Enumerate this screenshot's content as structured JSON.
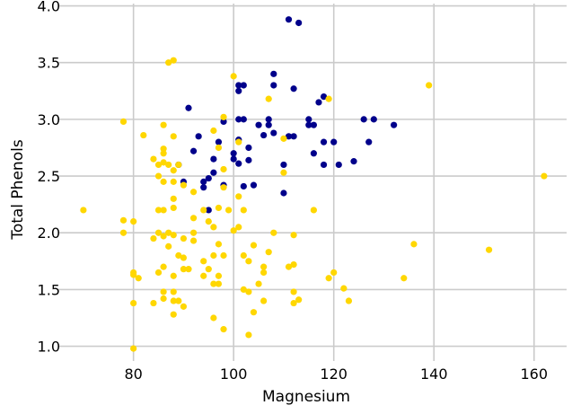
{
  "chart_data": {
    "type": "scatter",
    "xlabel": "Magnesium",
    "ylabel": "Total Phenols",
    "xlim": [
      65,
      166.5
    ],
    "ylim": [
      0.87,
      4.02
    ],
    "x_ticks": [
      80,
      100,
      120,
      140,
      160
    ],
    "y_ticks": [
      1.0,
      1.5,
      2.0,
      2.5,
      3.0,
      3.5,
      4.0
    ],
    "x_tick_labels": [
      "80",
      "100",
      "120",
      "140",
      "160"
    ],
    "y_tick_labels": [
      "1.0",
      "1.5",
      "2.0",
      "2.5",
      "3.0",
      "3.5",
      "4.0"
    ],
    "grid": true,
    "legend": false,
    "background": "#ffffff",
    "grid_color": "#cbcbcb",
    "series": [
      {
        "color": "#00008b",
        "points": [
          [
            111,
            3.88
          ],
          [
            113,
            3.85
          ],
          [
            108,
            3.4
          ],
          [
            101,
            3.3
          ],
          [
            102,
            3.3
          ],
          [
            101,
            3.25
          ],
          [
            108,
            3.3
          ],
          [
            112,
            3.27
          ],
          [
            118,
            3.2
          ],
          [
            117,
            3.15
          ],
          [
            91,
            3.1
          ],
          [
            101,
            3.0
          ],
          [
            102,
            3.0
          ],
          [
            107,
            3.0
          ],
          [
            115,
            3.0
          ],
          [
            126,
            3.0
          ],
          [
            128,
            3.0
          ],
          [
            105,
            2.95
          ],
          [
            107,
            2.95
          ],
          [
            115,
            2.95
          ],
          [
            116,
            2.95
          ],
          [
            132,
            2.95
          ],
          [
            108,
            2.88
          ],
          [
            106,
            2.86
          ],
          [
            111,
            2.85
          ],
          [
            112,
            2.85
          ],
          [
            93,
            2.85
          ],
          [
            98,
            2.98
          ],
          [
            101,
            2.82
          ],
          [
            118,
            2.8
          ],
          [
            120,
            2.8
          ],
          [
            127,
            2.8
          ],
          [
            97,
            2.8
          ],
          [
            100,
            2.7
          ],
          [
            92,
            2.72
          ],
          [
            103,
            2.75
          ],
          [
            116,
            2.7
          ],
          [
            100,
            2.65
          ],
          [
            96,
            2.65
          ],
          [
            103,
            2.64
          ],
          [
            124,
            2.63
          ],
          [
            110,
            2.6
          ],
          [
            118,
            2.6
          ],
          [
            121,
            2.6
          ],
          [
            89,
            2.6
          ],
          [
            101,
            2.61
          ],
          [
            96,
            2.53
          ],
          [
            95,
            2.48
          ],
          [
            94,
            2.45
          ],
          [
            90,
            2.45
          ],
          [
            98,
            2.42
          ],
          [
            102,
            2.41
          ],
          [
            104,
            2.42
          ],
          [
            94,
            2.4
          ],
          [
            110,
            2.35
          ],
          [
            95,
            2.2
          ]
        ]
      },
      {
        "color": "#ffd700",
        "points": [
          [
            88,
            3.52
          ],
          [
            87,
            3.5
          ],
          [
            100,
            3.38
          ],
          [
            139,
            3.3
          ],
          [
            119,
            3.18
          ],
          [
            107,
            3.18
          ],
          [
            98,
            3.02
          ],
          [
            78,
            2.98
          ],
          [
            86,
            2.95
          ],
          [
            96,
            2.9
          ],
          [
            82,
            2.86
          ],
          [
            88,
            2.85
          ],
          [
            110,
            2.83
          ],
          [
            101,
            2.8
          ],
          [
            97,
            2.75
          ],
          [
            86,
            2.74
          ],
          [
            86,
            2.7
          ],
          [
            84,
            2.65
          ],
          [
            85,
            2.6
          ],
          [
            86,
            2.62
          ],
          [
            87,
            2.6
          ],
          [
            88,
            2.55
          ],
          [
            89,
            2.6
          ],
          [
            98,
            2.56
          ],
          [
            110,
            2.53
          ],
          [
            85,
            2.5
          ],
          [
            86,
            2.45
          ],
          [
            88,
            2.45
          ],
          [
            90,
            2.42
          ],
          [
            98,
            2.4
          ],
          [
            92,
            2.36
          ],
          [
            101,
            2.32
          ],
          [
            88,
            2.3
          ],
          [
            162,
            2.5
          ],
          [
            70,
            2.2
          ],
          [
            85,
            2.2
          ],
          [
            86,
            2.2
          ],
          [
            88,
            2.22
          ],
          [
            94,
            2.2
          ],
          [
            99,
            2.2
          ],
          [
            102,
            2.2
          ],
          [
            116,
            2.2
          ],
          [
            95,
            2.1
          ],
          [
            97,
            2.22
          ],
          [
            78,
            2.11
          ],
          [
            80,
            2.1
          ],
          [
            92,
            2.13
          ],
          [
            101,
            2.05
          ],
          [
            100,
            2.02
          ],
          [
            96,
            2.05
          ],
          [
            78,
            2.0
          ],
          [
            85,
            2.0
          ],
          [
            86,
            1.97
          ],
          [
            87,
            2.0
          ],
          [
            88,
            1.98
          ],
          [
            92,
            2.0
          ],
          [
            84,
            1.95
          ],
          [
            90,
            1.95
          ],
          [
            92,
            1.93
          ],
          [
            97,
            1.9
          ],
          [
            104,
            1.89
          ],
          [
            108,
            2.0
          ],
          [
            112,
            1.98
          ],
          [
            136,
            1.9
          ],
          [
            87,
            1.88
          ],
          [
            89,
            1.8
          ],
          [
            90,
            1.78
          ],
          [
            96,
            1.8
          ],
          [
            102,
            1.8
          ],
          [
            103,
            1.75
          ],
          [
            107,
            1.83
          ],
          [
            151,
            1.85
          ],
          [
            98,
            1.8
          ],
          [
            94,
            1.75
          ],
          [
            86,
            1.7
          ],
          [
            90,
            1.68
          ],
          [
            91,
            1.68
          ],
          [
            95,
            1.68
          ],
          [
            97,
            1.62
          ],
          [
            106,
            1.7
          ],
          [
            106,
            1.65
          ],
          [
            111,
            1.7
          ],
          [
            112,
            1.72
          ],
          [
            120,
            1.65
          ],
          [
            80,
            1.65
          ],
          [
            80,
            1.63
          ],
          [
            81,
            1.6
          ],
          [
            85,
            1.65
          ],
          [
            88,
            1.62
          ],
          [
            94,
            1.62
          ],
          [
            119,
            1.6
          ],
          [
            134,
            1.6
          ],
          [
            105,
            1.55
          ],
          [
            96,
            1.55
          ],
          [
            97,
            1.55
          ],
          [
            102,
            1.5
          ],
          [
            103,
            1.48
          ],
          [
            86,
            1.48
          ],
          [
            88,
            1.48
          ],
          [
            112,
            1.48
          ],
          [
            122,
            1.51
          ],
          [
            86,
            1.42
          ],
          [
            88,
            1.4
          ],
          [
            90,
            1.35
          ],
          [
            84,
            1.38
          ],
          [
            80,
            1.38
          ],
          [
            89,
            1.4
          ],
          [
            106,
            1.4
          ],
          [
            112,
            1.38
          ],
          [
            113,
            1.41
          ],
          [
            123,
            1.4
          ],
          [
            104,
            1.3
          ],
          [
            88,
            1.28
          ],
          [
            96,
            1.25
          ],
          [
            98,
            1.15
          ],
          [
            103,
            1.1
          ],
          [
            80,
            0.98
          ]
        ]
      }
    ]
  }
}
